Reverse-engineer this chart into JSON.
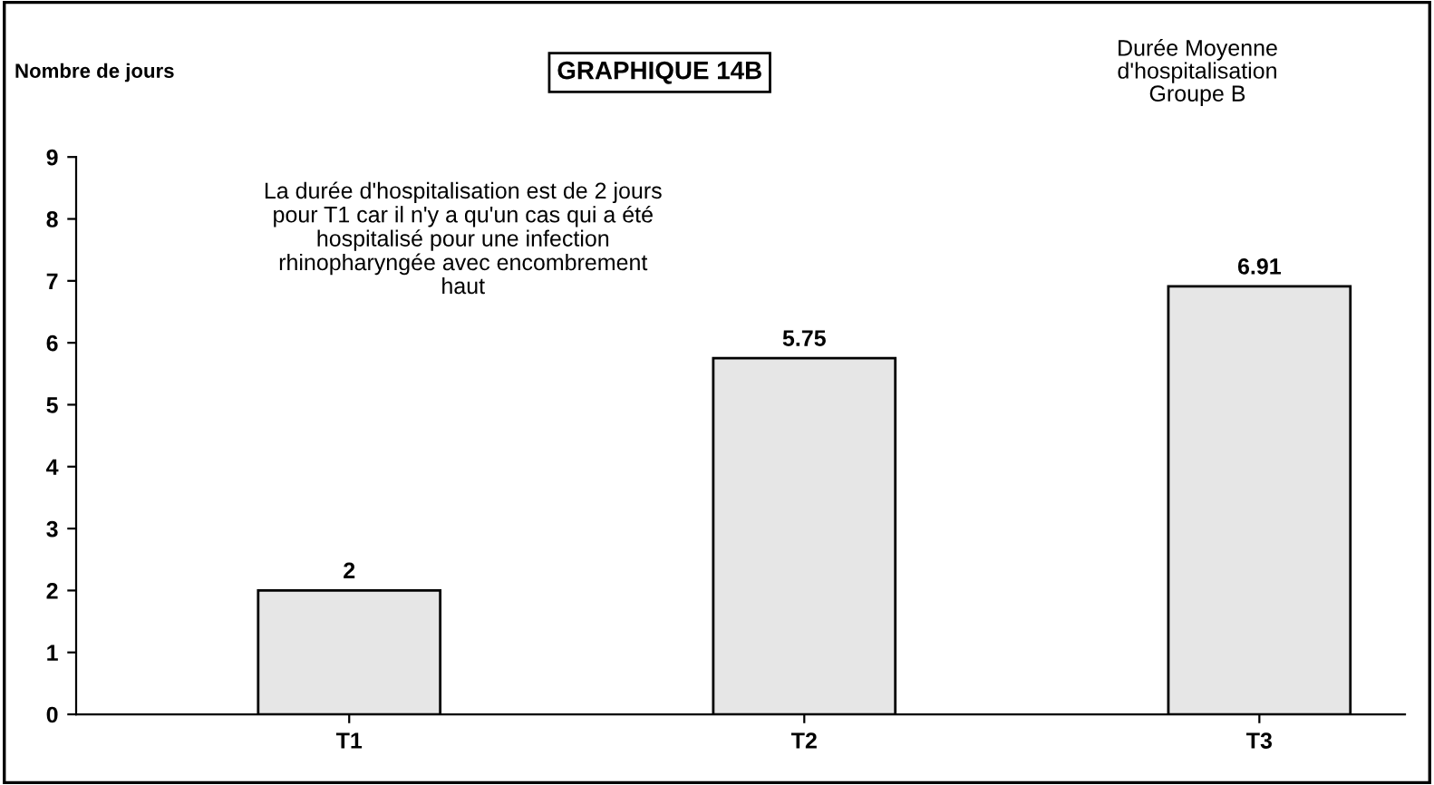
{
  "chart_data": {
    "type": "bar",
    "title": "GRAPHIQUE 14B",
    "subtitle": "Durée Moyenne\nd'hospitalisation\nGroupe B",
    "ylabel": "Nombre de jours",
    "categories": [
      "T1",
      "T2",
      "T3"
    ],
    "values": [
      2,
      5.75,
      6.91
    ],
    "color": "#e6e6e6",
    "ylim": [
      0,
      9
    ],
    "yticks": [
      0,
      1,
      2,
      3,
      4,
      5,
      6,
      7,
      8,
      9
    ],
    "grid": false,
    "legend": false,
    "data_labels": true,
    "annotations": [
      "La durée d'hospitalisation est de 2 jours\npour T1 car il n'y a qu'un cas qui a été\nhospitalisé pour une infection\nrhinopharyngée avec encombrement\nhaut"
    ]
  }
}
